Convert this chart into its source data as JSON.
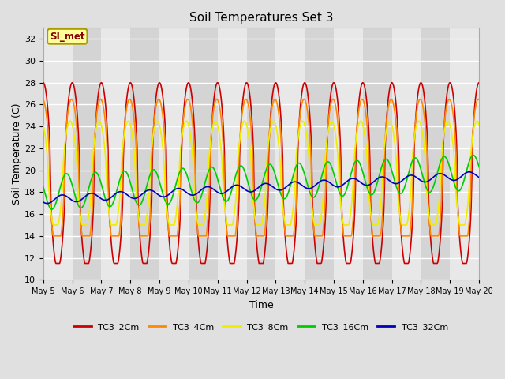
{
  "title": "Soil Temperatures Set 3",
  "xlabel": "Time",
  "ylabel": "Soil Temperature (C)",
  "ylim": [
    10,
    33
  ],
  "yticks": [
    10,
    12,
    14,
    16,
    18,
    20,
    22,
    24,
    26,
    28,
    30,
    32
  ],
  "series_colors": [
    "#cc0000",
    "#ff8800",
    "#eeee00",
    "#00cc00",
    "#0000bb"
  ],
  "series_labels": [
    "TC3_2Cm",
    "TC3_4Cm",
    "TC3_8Cm",
    "TC3_16Cm",
    "TC3_32Cm"
  ],
  "annotation_text": "SI_met",
  "annotation_bg": "#ffff99",
  "annotation_border": "#aa9900",
  "fig_bg_color": "#e0e0e0",
  "plot_bg_light": "#f0f0f0",
  "plot_bg_dark": "#e0e0e0",
  "grid_color": "#ffffff",
  "num_points": 720,
  "days": 15
}
